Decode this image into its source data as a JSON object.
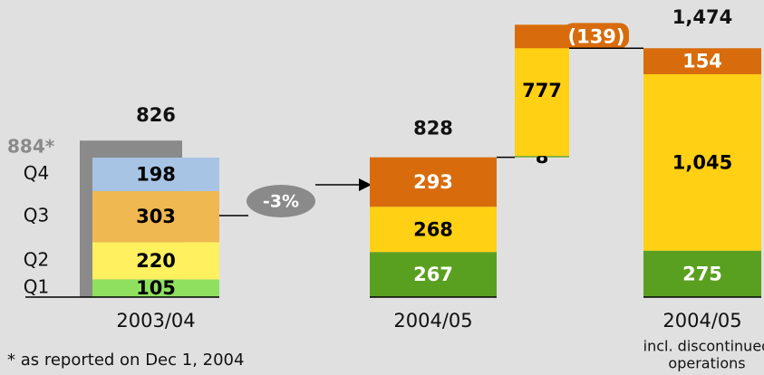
{
  "chart_data": {
    "type": "waterfall",
    "bars": [
      {
        "label": "2003/04",
        "total": 826,
        "reported": 884,
        "reported_label": "884*",
        "reported_color": "#8a8a8a",
        "segments": [
          {
            "name": "Q1",
            "value": 105,
            "color": "#90e060",
            "text_color": "#000000"
          },
          {
            "name": "Q2",
            "value": 220,
            "color": "#fff060",
            "text_color": "#000000"
          },
          {
            "name": "Q3",
            "value": 303,
            "color": "#f0b850",
            "text_color": "#000000"
          },
          {
            "name": "Q4",
            "value": 198,
            "color": "#a8c4e4",
            "text_color": "#000000"
          }
        ]
      },
      {
        "label": "2004/05",
        "total": 828,
        "segments": [
          {
            "value": 267,
            "color": "#5aa020",
            "text_color": "#ffffff"
          },
          {
            "value": 268,
            "color": "#ffd014",
            "text_color": "#000000"
          },
          {
            "value": 293,
            "color": "#d86c0c",
            "text_color": "#ffffff"
          }
        ]
      },
      {
        "segments": [
          {
            "value": 8,
            "color": "#5aa020",
            "text_color": "#000000"
          },
          {
            "value": 777,
            "color": "#ffd014",
            "text_color": "#000000"
          },
          {
            "value": -139,
            "value_label": "(139)",
            "color": "#d86c0c",
            "text_color": "#ffffff"
          }
        ]
      },
      {
        "label": "2004/05",
        "sublabel": [
          "incl. discontinued",
          "operations"
        ],
        "total": 1474,
        "total_label": "1,474",
        "segments": [
          {
            "value": 275,
            "color": "#5aa020",
            "text_color": "#ffffff"
          },
          {
            "value": 1045,
            "value_label": "1,045",
            "color": "#ffd014",
            "text_color": "#000000"
          },
          {
            "value": 154,
            "color": "#d86c0c",
            "text_color": "#ffffff"
          }
        ]
      }
    ],
    "change_label": "-3%",
    "footnote": "* as reported on Dec 1, 2004"
  }
}
